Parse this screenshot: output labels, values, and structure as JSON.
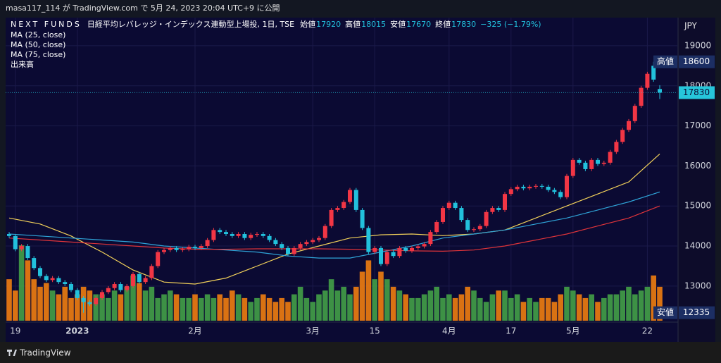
{
  "chart_data": {
    "type": "candlestick",
    "published": "masa117_114 が TradingView.com で 5月 24, 2023 20:04 UTC+9 に公開",
    "symbol": "NEXT FUNDS",
    "description": "日経平均レバレッジ・インデックス連動型上場投, 1日, TSE",
    "ohlc_legend": [
      {
        "label": "始値",
        "value": 17920
      },
      {
        "label": "高値",
        "value": 18015
      },
      {
        "label": "安値",
        "value": 17670
      },
      {
        "label": "終値",
        "value": 17830
      }
    ],
    "change": "−325 (−1.79%)",
    "currency": "JPY",
    "categories": [
      null,
      "19",
      null,
      null,
      null,
      null,
      null,
      null,
      null,
      null,
      null,
      "2023",
      null,
      null,
      null,
      null,
      null,
      null,
      null,
      null,
      null,
      null,
      null,
      null,
      null,
      null,
      null,
      null,
      null,
      null,
      "2月",
      null,
      null,
      null,
      null,
      null,
      null,
      null,
      null,
      null,
      null,
      null,
      null,
      null,
      null,
      null,
      null,
      null,
      null,
      "3月",
      null,
      null,
      null,
      null,
      null,
      null,
      null,
      null,
      null,
      "15",
      null,
      null,
      null,
      null,
      null,
      null,
      null,
      null,
      null,
      null,
      null,
      "4月",
      null,
      null,
      null,
      null,
      null,
      null,
      null,
      null,
      null,
      "17",
      null,
      null,
      null,
      null,
      null,
      null,
      null,
      null,
      null,
      "5月",
      null,
      null,
      null,
      null,
      null,
      null,
      null,
      null,
      null,
      null,
      null,
      "22",
      null,
      null
    ],
    "open": [
      14300,
      14250,
      13920,
      14000,
      13700,
      13450,
      13250,
      13150,
      13200,
      13100,
      13050,
      12900,
      12700,
      12600,
      12550,
      12700,
      12850,
      12950,
      13050,
      12900,
      13000,
      13300,
      13100,
      13200,
      13500,
      13850,
      13900,
      13950,
      13900,
      13920,
      13980,
      13950,
      14000,
      14150,
      14400,
      14350,
      14300,
      14250,
      14300,
      14200,
      14280,
      14300,
      14250,
      14150,
      14050,
      13950,
      13800,
      13950,
      14050,
      14100,
      14150,
      14200,
      14500,
      14900,
      14950,
      15100,
      15400,
      14900,
      14450,
      13850,
      13950,
      13550,
      13850,
      13750,
      13950,
      13880,
      13950,
      13990,
      14050,
      14350,
      14600,
      14950,
      15080,
      14950,
      14650,
      14400,
      14420,
      14500,
      14850,
      14950,
      14900,
      15300,
      15420,
      15480,
      15440,
      15480,
      15500,
      15480,
      15400,
      15350,
      15220,
      15750,
      16150,
      16080,
      15920,
      16150,
      16050,
      16080,
      16350,
      16600,
      16900,
      17120,
      17500,
      17950,
      18500,
      17920
    ],
    "high": [
      14350,
      14300,
      14050,
      14050,
      13750,
      13500,
      13300,
      13250,
      13250,
      13150,
      13100,
      12950,
      12750,
      12650,
      12750,
      12900,
      13000,
      13100,
      13100,
      13050,
      13350,
      13350,
      13250,
      13550,
      13900,
      13950,
      14000,
      14000,
      13970,
      14030,
      14030,
      14050,
      14200,
      14450,
      14450,
      14400,
      14350,
      14350,
      14350,
      14330,
      14350,
      14350,
      14300,
      14200,
      14100,
      14000,
      14000,
      14100,
      14150,
      14200,
      14250,
      14550,
      14950,
      15000,
      15150,
      15450,
      15450,
      14950,
      14500,
      14000,
      14000,
      13900,
      13900,
      14000,
      14000,
      14000,
      14040,
      14100,
      14400,
      14650,
      15000,
      15130,
      15130,
      15000,
      14700,
      14470,
      14550,
      14900,
      15000,
      15000,
      15350,
      15470,
      15530,
      15530,
      15530,
      15550,
      15550,
      15530,
      15450,
      15400,
      15800,
      16200,
      16200,
      16130,
      16200,
      16200,
      16130,
      16400,
      16650,
      16950,
      17170,
      17550,
      18000,
      18350,
      18600,
      18015
    ],
    "low": [
      14200,
      13870,
      13870,
      13650,
      13400,
      13200,
      13100,
      13100,
      13050,
      13000,
      12850,
      12650,
      12335,
      12500,
      12500,
      12650,
      12800,
      12900,
      12850,
      12850,
      12950,
      13050,
      13050,
      13150,
      13450,
      13800,
      13850,
      13850,
      13850,
      13870,
      13900,
      13900,
      13950,
      14100,
      14300,
      14250,
      14200,
      14200,
      14150,
      14150,
      14230,
      14200,
      14100,
      14000,
      13900,
      13750,
      13750,
      13900,
      14000,
      14050,
      14100,
      14150,
      14450,
      14850,
      14900,
      15050,
      14850,
      14400,
      13800,
      13800,
      13500,
      13500,
      13700,
      13700,
      13830,
      13830,
      13900,
      13940,
      14000,
      14300,
      14550,
      14900,
      14900,
      14600,
      14350,
      14350,
      14370,
      14450,
      14800,
      14850,
      14850,
      15250,
      15370,
      15390,
      15390,
      15430,
      15430,
      15350,
      15300,
      15170,
      15170,
      15700,
      16030,
      15870,
      15870,
      16000,
      16000,
      16030,
      16300,
      16550,
      16850,
      17070,
      17450,
      17900,
      18100,
      17670
    ],
    "close": [
      14250,
      13920,
      14000,
      13700,
      13450,
      13250,
      13150,
      13200,
      13100,
      13050,
      12900,
      12700,
      12600,
      12550,
      12700,
      12850,
      12950,
      13050,
      12900,
      13000,
      13300,
      13100,
      13200,
      13500,
      13850,
      13900,
      13950,
      13900,
      13920,
      13980,
      13950,
      14000,
      14150,
      14400,
      14350,
      14300,
      14250,
      14300,
      14200,
      14280,
      14300,
      14250,
      14150,
      14050,
      13950,
      13800,
      13950,
      14050,
      14100,
      14150,
      14200,
      14500,
      14900,
      14950,
      15100,
      15400,
      14900,
      14450,
      13850,
      13950,
      13550,
      13850,
      13750,
      13950,
      13880,
      13950,
      13990,
      14050,
      14350,
      14600,
      14950,
      15080,
      14950,
      14650,
      14400,
      14420,
      14500,
      14850,
      14950,
      14900,
      15300,
      15420,
      15480,
      15440,
      15480,
      15500,
      15480,
      15400,
      15350,
      15220,
      15750,
      16150,
      16080,
      15920,
      16150,
      16050,
      16080,
      16350,
      16600,
      16900,
      17120,
      17500,
      17950,
      18300,
      18155,
      17830
    ],
    "up_color": "#f23645",
    "down_color": "#22c1dc",
    "series": [
      {
        "name": "MA (25, close)",
        "color": "#f2d15a",
        "x": [
          0,
          5,
          10,
          15,
          20,
          25,
          30,
          35,
          40,
          45,
          50,
          55,
          60,
          65,
          70,
          75,
          80,
          85,
          90,
          95,
          100,
          105
        ],
        "values": [
          14700,
          14550,
          14250,
          13850,
          13400,
          13100,
          13050,
          13200,
          13500,
          13800,
          14000,
          14200,
          14280,
          14300,
          14260,
          14300,
          14400,
          14700,
          15000,
          15300,
          15600,
          16300
        ]
      },
      {
        "name": "MA (50, close)",
        "color": "#2fa4d8",
        "x": [
          0,
          5,
          10,
          15,
          20,
          25,
          30,
          35,
          40,
          45,
          50,
          55,
          60,
          65,
          70,
          75,
          80,
          85,
          90,
          95,
          100,
          105
        ],
        "values": [
          14300,
          14250,
          14200,
          14150,
          14100,
          14000,
          13950,
          13900,
          13850,
          13750,
          13700,
          13700,
          13850,
          14000,
          14200,
          14300,
          14400,
          14550,
          14700,
          14900,
          15100,
          15350
        ]
      },
      {
        "name": "MA (75, close)",
        "color": "#e0343a",
        "x": [
          0,
          5,
          10,
          15,
          20,
          25,
          30,
          35,
          40,
          45,
          50,
          55,
          60,
          65,
          70,
          75,
          80,
          85,
          90,
          95,
          100,
          105
        ],
        "values": [
          14200,
          14150,
          14100,
          14050,
          14000,
          13950,
          13920,
          13920,
          13930,
          13930,
          13930,
          13920,
          13900,
          13880,
          13870,
          13900,
          14000,
          14150,
          14300,
          14500,
          14700,
          15000
        ]
      }
    ],
    "volume": {
      "name": "出来高",
      "up_color": "#43a047",
      "down_color": "#ef7d0f",
      "values": [
        55,
        40,
        100,
        80,
        55,
        45,
        50,
        40,
        35,
        45,
        30,
        35,
        45,
        40,
        35,
        35,
        30,
        40,
        35,
        45,
        60,
        50,
        40,
        45,
        30,
        35,
        40,
        35,
        30,
        30,
        35,
        30,
        35,
        30,
        35,
        30,
        40,
        35,
        30,
        25,
        30,
        35,
        30,
        25,
        30,
        25,
        35,
        45,
        30,
        25,
        35,
        40,
        55,
        40,
        45,
        35,
        45,
        65,
        80,
        55,
        65,
        55,
        45,
        40,
        35,
        30,
        30,
        35,
        40,
        45,
        30,
        35,
        30,
        35,
        45,
        40,
        30,
        25,
        35,
        40,
        40,
        30,
        35,
        25,
        30,
        25,
        30,
        30,
        25,
        35,
        45,
        40,
        35,
        30,
        35,
        25,
        30,
        35,
        35,
        40,
        45,
        35,
        40,
        45,
        60,
        45
      ]
    },
    "ylim": [
      12100,
      19650
    ],
    "yticks": [
      13000,
      14000,
      15000,
      16000,
      17000,
      18000,
      19000
    ],
    "grid": true,
    "price_tags": [
      {
        "label": "高値",
        "value": 18600,
        "color": "#1c2e63",
        "text_color": "#ffffff"
      },
      {
        "value": 17830,
        "color": "#26c6da",
        "text_color": "#0b0a33",
        "last_price_line": true
      },
      {
        "label": "安値",
        "value": 12335,
        "color": "#1c2e63",
        "text_color": "#ffffff"
      }
    ],
    "footer": "TradingView"
  }
}
